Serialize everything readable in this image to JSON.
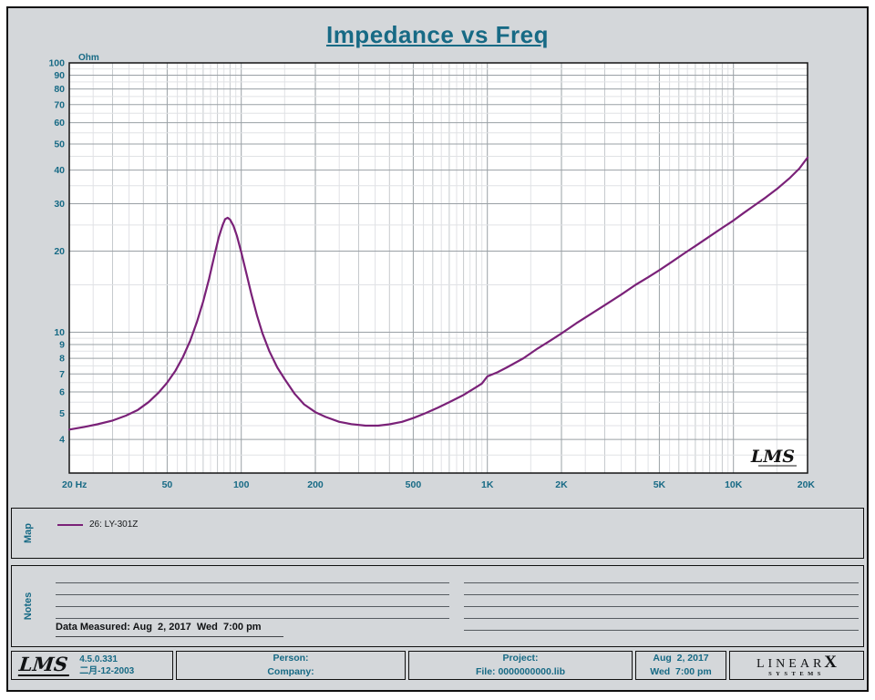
{
  "colors": {
    "accent": "#176a85",
    "curve": "#7a2178",
    "background": "#d4d7da",
    "grid_major": "#9aa0a5",
    "grid_minor": "#c6cacd",
    "grid_sub": "#e0e2e5"
  },
  "title": "Impedance vs Freq",
  "chart_data": {
    "type": "line",
    "title": "Impedance vs Freq",
    "x_scale": "log",
    "y_scale": "log",
    "x_range": [
      20,
      20000
    ],
    "y_range": [
      3,
      100
    ],
    "x_unit": "Hz",
    "y_unit": "Ohm",
    "grid": true,
    "watermark": "LMS",
    "x_ticks": [
      {
        "value": 20,
        "label": "20  Hz"
      },
      {
        "value": 50,
        "label": "50"
      },
      {
        "value": 100,
        "label": "100"
      },
      {
        "value": 200,
        "label": "200"
      },
      {
        "value": 500,
        "label": "500"
      },
      {
        "value": 1000,
        "label": "1K"
      },
      {
        "value": 2000,
        "label": "2K"
      },
      {
        "value": 5000,
        "label": "5K"
      },
      {
        "value": 10000,
        "label": "10K"
      },
      {
        "value": 20000,
        "label": "20K"
      }
    ],
    "y_ticks": [
      100,
      90,
      80,
      70,
      60,
      50,
      40,
      30,
      20,
      10,
      9,
      8,
      7,
      6,
      5,
      4
    ],
    "series": [
      {
        "name": "26: LY-301Z",
        "color": "#7a2178",
        "points": [
          [
            20,
            4.35
          ],
          [
            23,
            4.45
          ],
          [
            26,
            4.55
          ],
          [
            30,
            4.7
          ],
          [
            34,
            4.9
          ],
          [
            38,
            5.15
          ],
          [
            42,
            5.5
          ],
          [
            46,
            5.95
          ],
          [
            50,
            6.5
          ],
          [
            54,
            7.2
          ],
          [
            58,
            8.1
          ],
          [
            62,
            9.3
          ],
          [
            66,
            10.9
          ],
          [
            70,
            13.0
          ],
          [
            74,
            15.8
          ],
          [
            78,
            19.5
          ],
          [
            81,
            22.5
          ],
          [
            84,
            25.0
          ],
          [
            86,
            26.3
          ],
          [
            88,
            26.6
          ],
          [
            90,
            26.2
          ],
          [
            93,
            24.8
          ],
          [
            96,
            22.8
          ],
          [
            100,
            19.8
          ],
          [
            105,
            16.5
          ],
          [
            110,
            13.8
          ],
          [
            116,
            11.5
          ],
          [
            122,
            9.9
          ],
          [
            130,
            8.5
          ],
          [
            140,
            7.4
          ],
          [
            150,
            6.7
          ],
          [
            165,
            5.9
          ],
          [
            180,
            5.4
          ],
          [
            200,
            5.05
          ],
          [
            220,
            4.85
          ],
          [
            250,
            4.65
          ],
          [
            280,
            4.56
          ],
          [
            320,
            4.5
          ],
          [
            360,
            4.5
          ],
          [
            400,
            4.55
          ],
          [
            450,
            4.65
          ],
          [
            500,
            4.8
          ],
          [
            560,
            5.0
          ],
          [
            630,
            5.25
          ],
          [
            700,
            5.5
          ],
          [
            800,
            5.85
          ],
          [
            900,
            6.25
          ],
          [
            950,
            6.45
          ],
          [
            1000,
            6.85
          ],
          [
            1100,
            7.1
          ],
          [
            1200,
            7.4
          ],
          [
            1400,
            8.0
          ],
          [
            1600,
            8.7
          ],
          [
            1800,
            9.3
          ],
          [
            2000,
            9.9
          ],
          [
            2300,
            10.8
          ],
          [
            2600,
            11.6
          ],
          [
            3000,
            12.6
          ],
          [
            3500,
            13.8
          ],
          [
            4000,
            15.0
          ],
          [
            4500,
            16.0
          ],
          [
            5000,
            17.0
          ],
          [
            5600,
            18.2
          ],
          [
            6300,
            19.6
          ],
          [
            7000,
            20.9
          ],
          [
            8000,
            22.7
          ],
          [
            9000,
            24.4
          ],
          [
            10000,
            26.0
          ],
          [
            11000,
            27.7
          ],
          [
            12000,
            29.3
          ],
          [
            13500,
            31.6
          ],
          [
            15000,
            34.0
          ],
          [
            17000,
            37.5
          ],
          [
            18500,
            40.5
          ],
          [
            20000,
            44.5
          ]
        ]
      }
    ]
  },
  "map_panel": {
    "label": "Map",
    "legend": [
      {
        "name": "26: LY-301Z",
        "color": "#7a2178"
      }
    ]
  },
  "notes_panel": {
    "label": "Notes",
    "data_measured": "Data Measured: Aug  2, 2017  Wed  7:00 pm"
  },
  "footer": {
    "lms_logo": "LMS",
    "version": "4.5.0.331",
    "build_date": "二月-12-2003",
    "person_label": "Person:",
    "company_label": "Company:",
    "project_label": "Project:",
    "file_label": "File: 0000000000.lib",
    "date": "Aug  2, 2017",
    "time": "Wed  7:00 pm",
    "brand_letters": "LINEAR",
    "brand_x": "X",
    "brand_sub": "SYSTEMS"
  }
}
